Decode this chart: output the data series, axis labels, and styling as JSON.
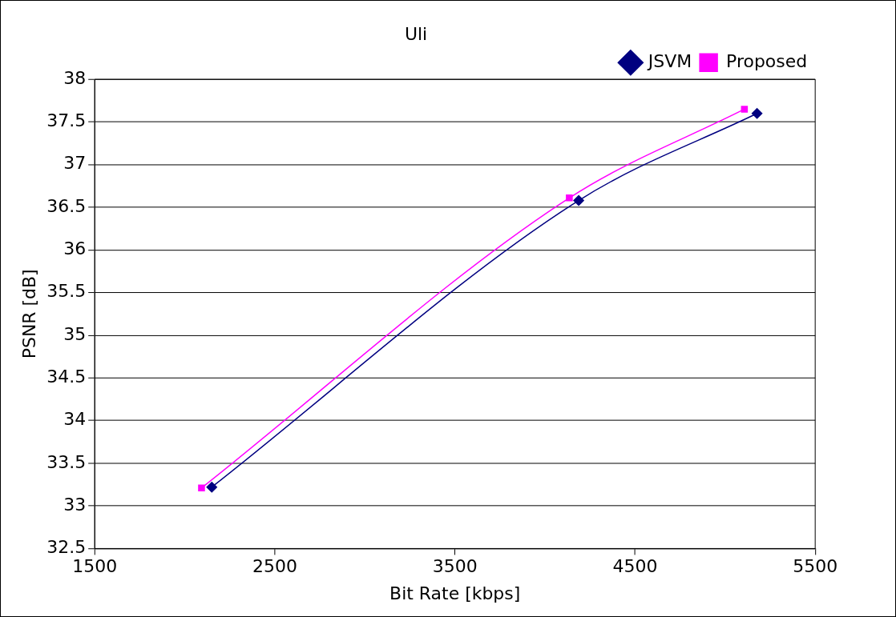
{
  "chart_data": {
    "type": "line",
    "title": "Uli",
    "xlabel": "Bit Rate [kbps]",
    "ylabel": "PSNR [dB]",
    "xlim": [
      1500,
      5500
    ],
    "xticks": [
      1500,
      2500,
      3500,
      4500,
      5500
    ],
    "ylim": [
      32.5,
      38
    ],
    "yticks": [
      32.5,
      33,
      33.5,
      34,
      34.5,
      35,
      35.5,
      36,
      36.5,
      37,
      37.5,
      38
    ],
    "grid": "y",
    "legend": "top right",
    "line_style": "solid",
    "series": [
      {
        "name": "JSVM",
        "color": "#000080",
        "marker": "diamond",
        "x": [
          2150,
          4187,
          5177
        ],
        "values": [
          33.22,
          36.58,
          37.6
        ]
      },
      {
        "name": "Proposed",
        "color": "#ff00ff",
        "marker": "square",
        "x": [
          2093,
          4135,
          5107
        ],
        "values": [
          33.21,
          36.61,
          37.65
        ]
      }
    ]
  }
}
